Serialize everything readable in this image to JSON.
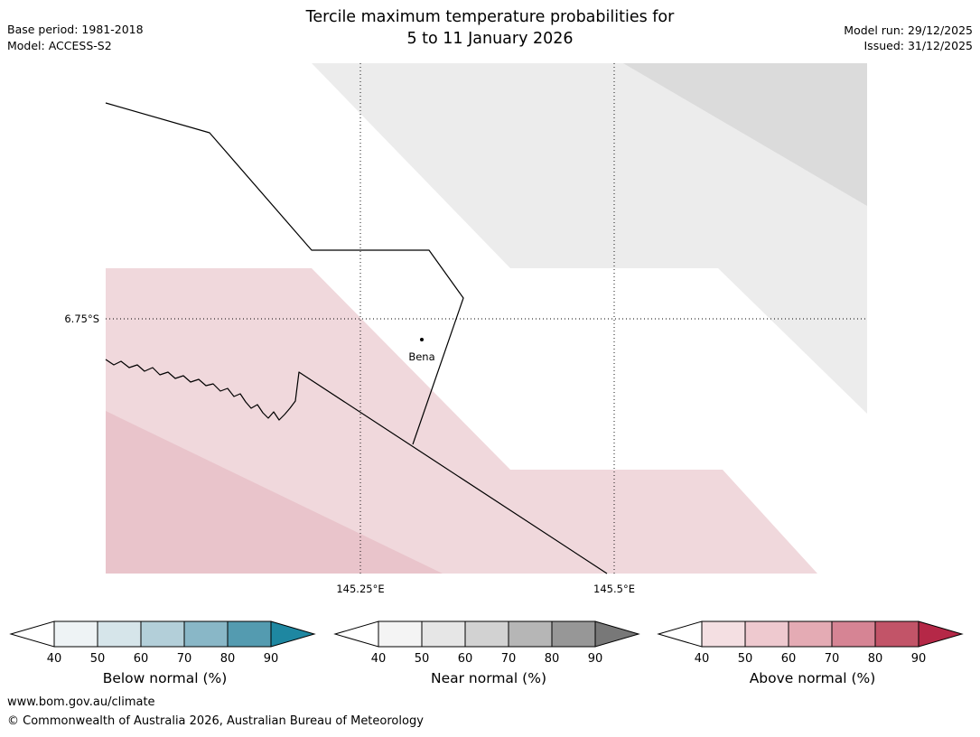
{
  "header": {
    "title_line1": "Tercile maximum temperature probabilities for",
    "title_line2": "5 to 11 January 2026",
    "base_period": "Base period: 1981-2018",
    "model": "Model: ACCESS-S2",
    "model_run": "Model run: 29/12/2025",
    "issued": "Issued: 31/12/2025"
  },
  "map": {
    "lat_label": "6.75°S",
    "lon_label_1": "145.25°E",
    "lon_label_2": "145.5°E",
    "place": "Bena",
    "colors": {
      "near_normal_light": "#ececec",
      "near_normal_mid": "#dbdbdb",
      "above_normal_light": "#f0d8dc",
      "above_normal_mid": "#e9c4cb",
      "line": "#000000",
      "background": "#ffffff"
    }
  },
  "legends": [
    {
      "caption": "Below normal (%)",
      "ticks": [
        "40",
        "50",
        "60",
        "70",
        "80",
        "90"
      ],
      "cell_colors": [
        "#eef3f5",
        "#d6e5ea",
        "#b3cfd9",
        "#89b7c7",
        "#549bb0"
      ],
      "left_arrow_color": "#ffffff",
      "right_arrow_color": "#1e87a1"
    },
    {
      "caption": "Near normal (%)",
      "ticks": [
        "40",
        "50",
        "60",
        "70",
        "80",
        "90"
      ],
      "cell_colors": [
        "#f4f4f4",
        "#e6e6e6",
        "#d2d2d2",
        "#b6b6b6",
        "#979797"
      ],
      "left_arrow_color": "#ffffff",
      "right_arrow_color": "#787878"
    },
    {
      "caption": "Above normal (%)",
      "ticks": [
        "40",
        "50",
        "60",
        "70",
        "80",
        "90"
      ],
      "cell_colors": [
        "#f4dfe2",
        "#eec9cf",
        "#e4abb4",
        "#d68494",
        "#c25468"
      ],
      "left_arrow_color": "#ffffff",
      "right_arrow_color": "#b52847"
    }
  ],
  "footer": {
    "url": "www.bom.gov.au/climate",
    "copyright": "© Commonwealth of Australia 2026, Australian Bureau of Meteorology"
  }
}
